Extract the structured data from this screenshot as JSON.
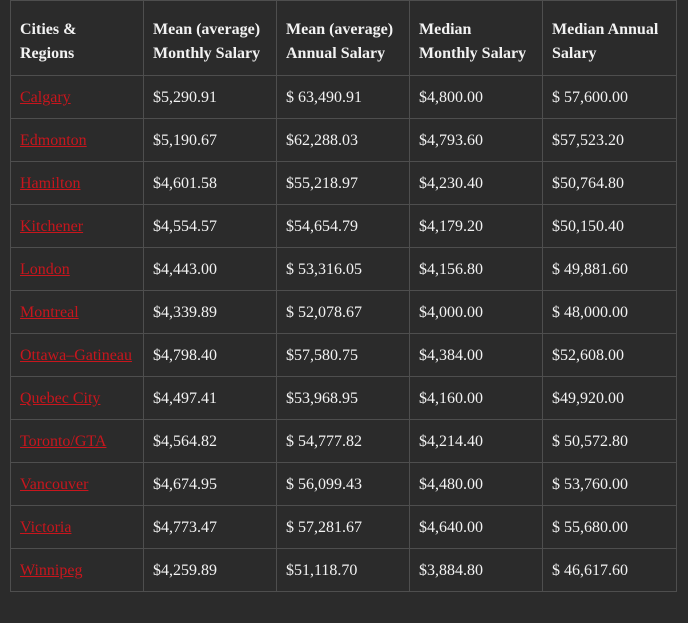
{
  "table": {
    "header": [
      "Cities & Regions",
      "Mean (average) Monthly Salary",
      "Mean (average) Annual Salary",
      "Median Monthly Salary",
      "Median Annual Salary"
    ],
    "rows": [
      [
        "Calgary",
        "$5,290.91",
        "$ 63,490.91",
        "$4,800.00",
        "$ 57,600.00"
      ],
      [
        "Edmonton",
        "$5,190.67",
        "$62,288.03",
        "$4,793.60",
        "$57,523.20"
      ],
      [
        "Hamilton",
        "$4,601.58",
        "$55,218.97",
        "$4,230.40",
        "$50,764.80"
      ],
      [
        "Kitchener",
        "$4,554.57",
        "$54,654.79",
        "$4,179.20",
        "$50,150.40"
      ],
      [
        "London",
        "$4,443.00",
        "$ 53,316.05",
        "$4,156.80",
        "$ 49,881.60"
      ],
      [
        "Montreal",
        "$4,339.89",
        "$ 52,078.67",
        "$4,000.00",
        "$ 48,000.00"
      ],
      [
        "Ottawa–Gatineau",
        "$4,798.40",
        "$57,580.75",
        "$4,384.00",
        "$52,608.00"
      ],
      [
        "Quebec City",
        "$4,497.41",
        "$53,968.95",
        "$4,160.00",
        "$49,920.00"
      ],
      [
        "Toronto/GTA",
        "$4,564.82",
        "$ 54,777.82",
        "$4,214.40",
        "$ 50,572.80"
      ],
      [
        "Vancouver",
        "$4,674.95",
        "$ 56,099.43",
        "$4,480.00",
        "$ 53,760.00"
      ],
      [
        "Victoria",
        "$4,773.47",
        "$ 57,281.67",
        "$4,640.00",
        "$ 55,680.00"
      ],
      [
        "Winnipeg",
        "$4,259.89",
        "$51,118.70",
        "$3,884.80",
        "$ 46,617.60"
      ]
    ]
  }
}
